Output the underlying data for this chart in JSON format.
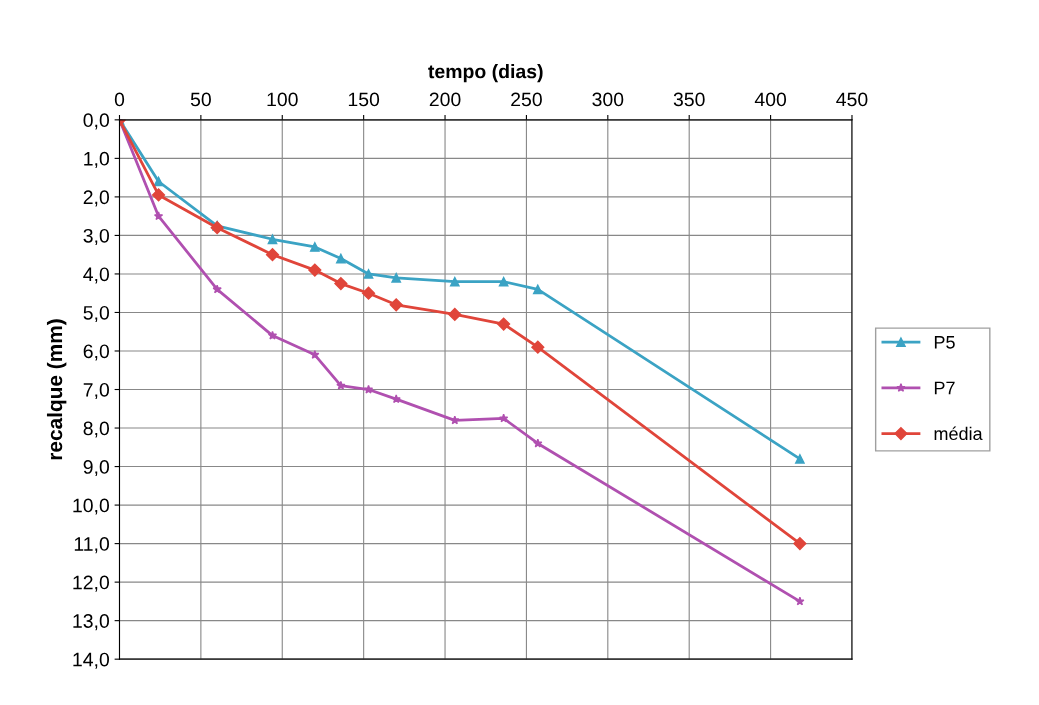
{
  "chart_data": {
    "type": "line",
    "xlabel": "tempo (dias)",
    "ylabel": "recalque (mm)",
    "x": [
      0,
      24,
      60,
      94,
      120,
      136,
      153,
      170,
      206,
      236,
      257,
      418
    ],
    "series": [
      {
        "name": "P5",
        "color": "#3ba3c4",
        "marker": "triangle",
        "values": [
          0,
          1.6,
          2.75,
          3.1,
          3.3,
          3.6,
          4.0,
          4.1,
          4.2,
          4.2,
          4.4,
          8.8
        ]
      },
      {
        "name": "P7",
        "color": "#b050b0",
        "marker": "star",
        "values": [
          0,
          2.5,
          4.4,
          5.6,
          6.1,
          6.9,
          7.0,
          7.25,
          7.8,
          7.75,
          8.4,
          12.5
        ]
      },
      {
        "name": "média",
        "color": "#e0453a",
        "marker": "diamond",
        "values": [
          0,
          1.95,
          2.8,
          3.5,
          3.9,
          4.25,
          4.5,
          4.8,
          5.05,
          5.3,
          5.9,
          11.0
        ]
      }
    ],
    "xlim": [
      0,
      450
    ],
    "xticks": [
      0,
      50,
      100,
      150,
      200,
      250,
      300,
      350,
      400,
      450
    ],
    "ylim": [
      14,
      0
    ],
    "yticks": [
      {
        "value": 0,
        "label": "0,0"
      },
      {
        "value": 1,
        "label": "1,0"
      },
      {
        "value": 2,
        "label": "2,0"
      },
      {
        "value": 3,
        "label": "3,0"
      },
      {
        "value": 4,
        "label": "4,0"
      },
      {
        "value": 5,
        "label": "5,0"
      },
      {
        "value": 6,
        "label": "6,0"
      },
      {
        "value": 7,
        "label": "7,0"
      },
      {
        "value": 8,
        "label": "8,0"
      },
      {
        "value": 9,
        "label": "9,0"
      },
      {
        "value": 10,
        "label": "10,0"
      },
      {
        "value": 11,
        "label": "11,0"
      },
      {
        "value": 12,
        "label": "12,0"
      },
      {
        "value": 13,
        "label": "13,0"
      },
      {
        "value": 14,
        "label": "14,0"
      }
    ],
    "grid": true,
    "legend": "right",
    "line_style": "solid"
  }
}
